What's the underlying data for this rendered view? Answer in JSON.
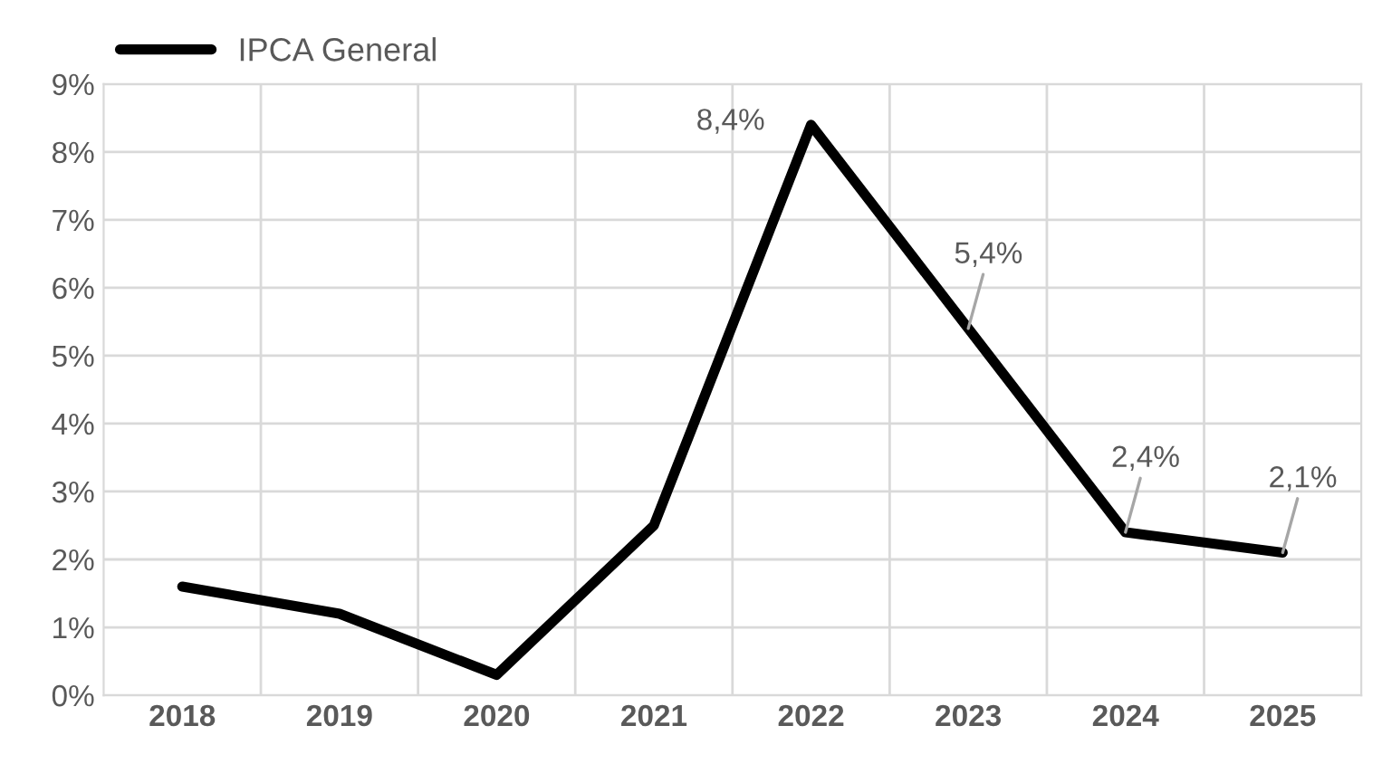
{
  "chart_data": {
    "type": "line",
    "categories": [
      "2018",
      "2019",
      "2020",
      "2021",
      "2022",
      "2023",
      "2024",
      "2025"
    ],
    "series": [
      {
        "name": "IPCA General",
        "color": "#000000",
        "values": [
          1.6,
          1.2,
          0.3,
          2.5,
          8.4,
          5.4,
          2.4,
          2.1
        ],
        "value_labels": [
          null,
          null,
          null,
          null,
          "8,4%",
          "5,4%",
          "2,4%",
          "2,1%"
        ]
      }
    ],
    "ylim": [
      0,
      9
    ],
    "yticks": [
      {
        "value": 0,
        "label": "0%"
      },
      {
        "value": 1,
        "label": "1%"
      },
      {
        "value": 2,
        "label": "2%"
      },
      {
        "value": 3,
        "label": "3%"
      },
      {
        "value": 4,
        "label": "4%"
      },
      {
        "value": 5,
        "label": "5%"
      },
      {
        "value": 6,
        "label": "6%"
      },
      {
        "value": 7,
        "label": "7%"
      },
      {
        "value": 8,
        "label": "8%"
      },
      {
        "value": 9,
        "label": "9%"
      }
    ],
    "grid": true,
    "legend": "top left",
    "marker": "none",
    "line_style": "solid"
  }
}
